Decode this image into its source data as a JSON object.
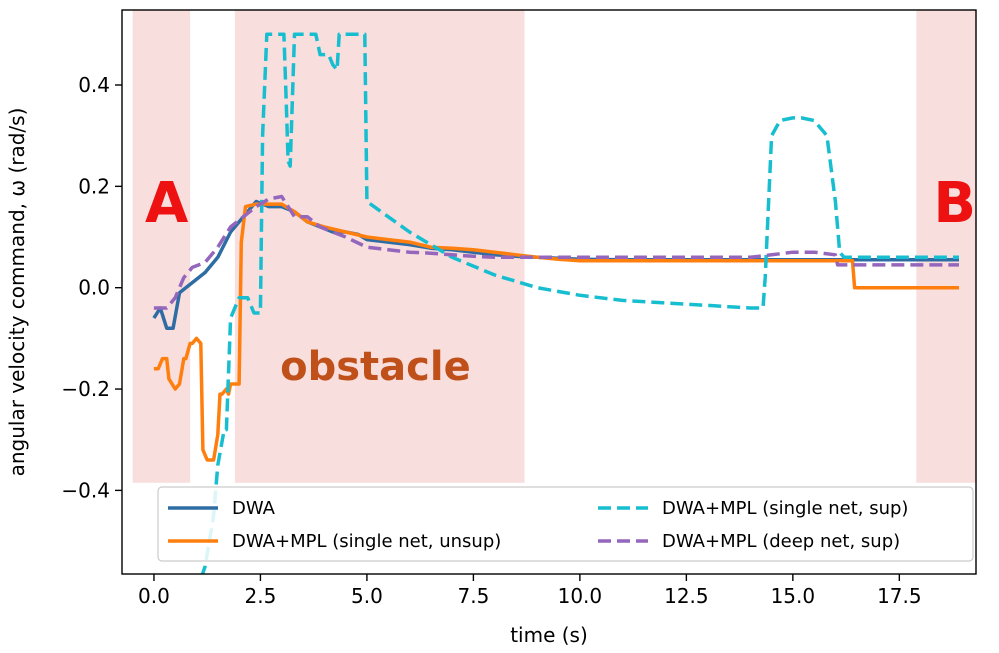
{
  "chart_data": {
    "type": "line",
    "xlabel": "time (s)",
    "ylabel": "angular velocity command, ω (rad/s)",
    "xlim": [
      -0.75,
      19.3
    ],
    "ylim": [
      -0.565,
      0.548
    ],
    "xticks": [
      0.0,
      2.5,
      5.0,
      7.5,
      10.0,
      12.5,
      15.0,
      17.5
    ],
    "xtick_labels": [
      "0.0",
      "2.5",
      "5.0",
      "7.5",
      "10.0",
      "12.5",
      "15.0",
      "17.5"
    ],
    "yticks": [
      -0.4,
      -0.2,
      0.0,
      0.2,
      0.4
    ],
    "ytick_labels": [
      "−0.4",
      "−0.2",
      "0.0",
      "0.2",
      "0.4"
    ],
    "grid": false,
    "legend_position": "lower-center",
    "shaded_regions": [
      {
        "x0": -0.5,
        "x1": 0.85,
        "y0": -0.385,
        "y1": 0.548
      },
      {
        "x0": 1.9,
        "x1": 8.7,
        "y0": -0.385,
        "y1": 0.548
      },
      {
        "x0": 17.9,
        "x1": 19.3,
        "y0": -0.385,
        "y1": 0.548
      }
    ],
    "shade_color": "#f9dede",
    "annotations": [
      {
        "text": "A",
        "x": 0.3,
        "y": 0.16,
        "kind": "letter"
      },
      {
        "text": "B",
        "x": 18.8,
        "y": 0.16,
        "kind": "letter"
      },
      {
        "text": "obstacle",
        "x": 5.2,
        "y": -0.16,
        "kind": "region"
      }
    ],
    "series": [
      {
        "name": "DWA",
        "color": "#2e6da4",
        "dash": "solid",
        "x": [
          0.0,
          0.15,
          0.3,
          0.45,
          0.6,
          0.9,
          1.2,
          1.5,
          1.8,
          2.1,
          2.4,
          2.7,
          3.0,
          3.3,
          3.6,
          3.9,
          4.2,
          4.5,
          4.8,
          5.0,
          5.5,
          6.0,
          6.5,
          7.0,
          7.5,
          8.0,
          8.5,
          9.0,
          9.5,
          10.0,
          11.0,
          12.0,
          13.0,
          14.0,
          15.0,
          16.0,
          17.0,
          18.0,
          18.9
        ],
        "y": [
          -0.06,
          -0.04,
          -0.08,
          -0.08,
          -0.01,
          0.01,
          0.03,
          0.06,
          0.11,
          0.14,
          0.17,
          0.16,
          0.16,
          0.15,
          0.13,
          0.12,
          0.11,
          0.11,
          0.105,
          0.095,
          0.09,
          0.085,
          0.078,
          0.075,
          0.07,
          0.065,
          0.062,
          0.06,
          0.058,
          0.056,
          0.055,
          0.055,
          0.055,
          0.055,
          0.055,
          0.055,
          0.055,
          0.055,
          0.055
        ]
      },
      {
        "name": "DWA+MPL (single net, unsup)",
        "color": "#ff7f0e",
        "dash": "solid",
        "x": [
          0.0,
          0.1,
          0.2,
          0.3,
          0.35,
          0.5,
          0.6,
          0.7,
          0.75,
          0.85,
          0.9,
          1.0,
          1.1,
          1.15,
          1.25,
          1.3,
          1.4,
          1.5,
          1.55,
          1.6,
          1.7,
          1.75,
          1.8,
          1.9,
          2.0,
          2.05,
          2.15,
          2.4,
          2.7,
          3.0,
          3.3,
          3.6,
          4.0,
          4.5,
          5.0,
          5.5,
          6.0,
          6.5,
          7.0,
          7.5,
          8.0,
          8.5,
          9.0,
          9.5,
          10.0,
          11.0,
          12.0,
          13.0,
          14.0,
          15.0,
          16.0,
          16.4,
          16.45,
          17.0,
          18.0,
          18.9
        ],
        "y": [
          -0.16,
          -0.16,
          -0.14,
          -0.14,
          -0.18,
          -0.2,
          -0.19,
          -0.14,
          -0.14,
          -0.11,
          -0.11,
          -0.1,
          -0.11,
          -0.32,
          -0.34,
          -0.34,
          -0.34,
          -0.29,
          -0.21,
          -0.21,
          -0.2,
          -0.21,
          -0.19,
          -0.19,
          -0.19,
          0.09,
          0.16,
          0.165,
          0.165,
          0.165,
          0.15,
          0.13,
          0.12,
          0.11,
          0.1,
          0.095,
          0.09,
          0.08,
          0.078,
          0.075,
          0.07,
          0.065,
          0.06,
          0.056,
          0.053,
          0.053,
          0.053,
          0.053,
          0.053,
          0.053,
          0.053,
          0.053,
          0.0,
          0.0,
          0.0,
          0.0
        ]
      },
      {
        "name": "DWA+MPL (single net, sup)",
        "color": "#17becf",
        "dash": "dashed",
        "x": [
          0.0,
          0.4,
          0.8,
          1.0,
          1.2,
          1.4,
          1.5,
          1.65,
          1.7,
          1.8,
          2.0,
          2.2,
          2.35,
          2.5,
          2.55,
          2.65,
          2.8,
          3.05,
          3.1,
          3.15,
          3.2,
          3.3,
          3.5,
          3.6,
          3.8,
          3.9,
          4.1,
          4.2,
          4.3,
          4.35,
          4.5,
          4.8,
          4.95,
          5.0,
          6.0,
          7.0,
          8.0,
          9.0,
          10.0,
          11.0,
          12.0,
          13.0,
          14.0,
          14.3,
          14.35,
          14.5,
          14.7,
          15.0,
          15.2,
          15.5,
          15.8,
          16.0,
          16.1,
          16.2,
          17.0,
          18.0,
          18.9
        ],
        "y": [
          -0.6,
          -0.6,
          -0.6,
          -0.6,
          -0.55,
          -0.45,
          -0.35,
          -0.28,
          -0.28,
          -0.06,
          -0.02,
          -0.02,
          -0.05,
          -0.05,
          0.3,
          0.5,
          0.5,
          0.5,
          0.38,
          0.25,
          0.24,
          0.5,
          0.5,
          0.5,
          0.5,
          0.46,
          0.46,
          0.44,
          0.43,
          0.5,
          0.5,
          0.5,
          0.5,
          0.17,
          0.11,
          0.06,
          0.025,
          0.0,
          -0.015,
          -0.025,
          -0.03,
          -0.035,
          -0.04,
          -0.04,
          0.02,
          0.3,
          0.33,
          0.335,
          0.335,
          0.33,
          0.3,
          0.17,
          0.07,
          0.06,
          0.06,
          0.06,
          0.06
        ]
      },
      {
        "name": "DWA+MPL (deep net, sup)",
        "color": "#9467bd",
        "dash": "dashed",
        "x": [
          0.0,
          0.3,
          0.5,
          0.7,
          0.9,
          1.2,
          1.5,
          1.8,
          2.1,
          2.4,
          2.7,
          3.0,
          3.3,
          3.6,
          3.9,
          4.2,
          4.5,
          5.0,
          5.5,
          6.0,
          6.5,
          7.0,
          7.5,
          8.0,
          9.0,
          10.0,
          11.0,
          12.0,
          13.0,
          14.0,
          14.5,
          15.0,
          15.5,
          16.0,
          16.05,
          17.0,
          18.0,
          18.9
        ],
        "y": [
          -0.04,
          -0.04,
          -0.02,
          0.02,
          0.04,
          0.05,
          0.08,
          0.12,
          0.14,
          0.16,
          0.175,
          0.18,
          0.14,
          0.14,
          0.12,
          0.11,
          0.1,
          0.08,
          0.075,
          0.07,
          0.068,
          0.065,
          0.062,
          0.06,
          0.06,
          0.06,
          0.06,
          0.06,
          0.06,
          0.06,
          0.065,
          0.07,
          0.07,
          0.065,
          0.045,
          0.045,
          0.045,
          0.045
        ]
      }
    ]
  }
}
